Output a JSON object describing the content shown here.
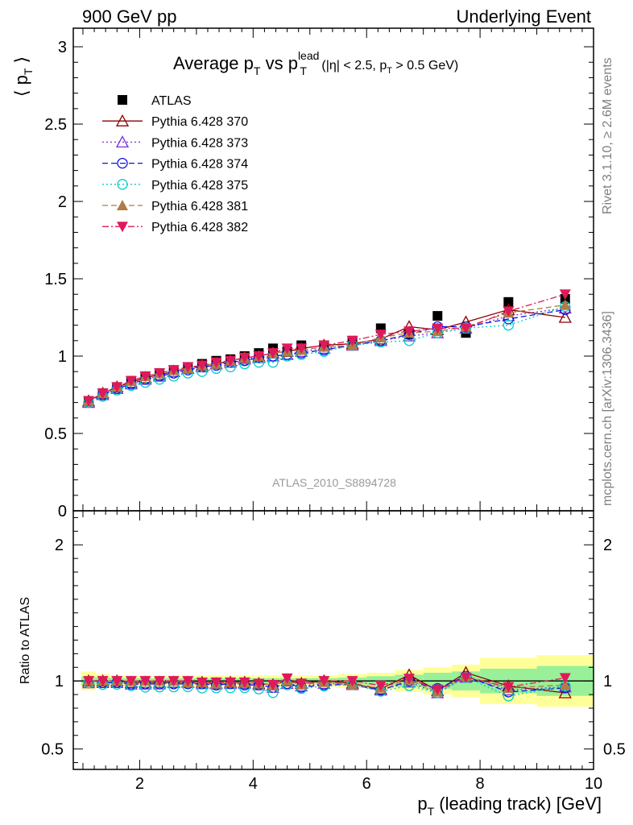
{
  "header": {
    "left": "900 GeV pp",
    "right": "Underlying Event"
  },
  "side_labels": {
    "rivet": "Rivet 3.1.10, ≥ 2.6M events",
    "mcplots": "mcplots.cern.ch [arXiv:1306.3436]"
  },
  "chart_data": [
    {
      "type": "scatter",
      "title": "Average p_T vs p_T^lead (|η| < 2.5, p_T > 0.5 GeV)",
      "title_parts": {
        "main": "Average p",
        "sub1": "T",
        "vs": " vs p",
        "sup": "lead",
        "sub2": "T",
        "cut": " (|η| < 2.5, p",
        "cut_sub": "T",
        "cut_end": " > 0.5 GeV)"
      },
      "ylabel": "⟨ p_T ⟩",
      "ylabel_parts": {
        "open": "⟨ p",
        "sub": "T",
        "close": "⟩"
      },
      "watermark": "ATLAS_2010_S8894728",
      "xlim": [
        0.83,
        10.0
      ],
      "ylim": [
        0,
        3.12
      ],
      "yticks": [
        0,
        0.5,
        1,
        1.5,
        2,
        2.5,
        3
      ],
      "ytick_labels": [
        "0",
        "0.5",
        "1",
        "1.5",
        "2",
        "2.5",
        "3"
      ],
      "log_y": false,
      "grid": false,
      "legend_position": "top-left",
      "x": [
        1.1,
        1.35,
        1.6,
        1.85,
        2.1,
        2.35,
        2.6,
        2.85,
        3.1,
        3.35,
        3.6,
        3.85,
        4.1,
        4.35,
        4.6,
        4.85,
        5.25,
        5.75,
        6.25,
        6.75,
        7.25,
        7.75,
        8.5,
        9.5
      ],
      "series": [
        {
          "name": "ATLAS",
          "color": "#000000",
          "marker": "square-filled",
          "line": "none",
          "values": [
            0.71,
            0.76,
            0.8,
            0.84,
            0.87,
            0.89,
            0.91,
            0.93,
            0.95,
            0.97,
            0.98,
            1.0,
            1.02,
            1.05,
            1.03,
            1.07,
            1.07,
            1.1,
            1.18,
            1.14,
            1.26,
            1.15,
            1.35,
            1.37
          ]
        },
        {
          "name": "Pythia 6.428 370",
          "color": "#8b0000",
          "marker": "triangle-up-open",
          "line": "solid",
          "values": [
            0.71,
            0.76,
            0.8,
            0.83,
            0.86,
            0.88,
            0.9,
            0.92,
            0.94,
            0.95,
            0.97,
            0.99,
            1.0,
            1.02,
            1.03,
            1.05,
            1.07,
            1.08,
            1.11,
            1.19,
            1.17,
            1.22,
            1.3,
            1.25
          ]
        },
        {
          "name": "Pythia 6.428 373",
          "color": "#7b2fd6",
          "marker": "triangle-up-open",
          "line": "dotted",
          "values": [
            0.7,
            0.75,
            0.79,
            0.82,
            0.85,
            0.87,
            0.9,
            0.92,
            0.93,
            0.95,
            0.96,
            0.98,
            0.99,
            1.0,
            1.01,
            1.03,
            1.05,
            1.07,
            1.1,
            1.13,
            1.15,
            1.18,
            1.26,
            1.31
          ]
        },
        {
          "name": "Pythia 6.428 374",
          "color": "#1010e0",
          "marker": "circle-open",
          "line": "dashed",
          "values": [
            0.7,
            0.75,
            0.79,
            0.82,
            0.85,
            0.87,
            0.89,
            0.91,
            0.93,
            0.94,
            0.96,
            0.97,
            0.99,
            1.0,
            1.01,
            1.02,
            1.04,
            1.07,
            1.1,
            1.14,
            1.19,
            1.19,
            1.24,
            1.3
          ]
        },
        {
          "name": "Pythia 6.428 375",
          "color": "#00cccc",
          "marker": "circle-open",
          "line": "dotted",
          "values": [
            0.7,
            0.74,
            0.78,
            0.81,
            0.83,
            0.85,
            0.87,
            0.89,
            0.9,
            0.92,
            0.93,
            0.95,
            0.96,
            0.96,
            1.0,
            1.01,
            1.03,
            1.07,
            1.09,
            1.1,
            1.15,
            1.18,
            1.2,
            1.32
          ]
        },
        {
          "name": "Pythia 6.428 381",
          "color": "#b07c45",
          "marker": "triangle-up-filled",
          "line": "dashed",
          "values": [
            0.71,
            0.76,
            0.8,
            0.84,
            0.87,
            0.89,
            0.91,
            0.92,
            0.94,
            0.95,
            0.97,
            0.99,
            1.0,
            1.02,
            1.03,
            1.04,
            1.06,
            1.07,
            1.12,
            1.15,
            1.16,
            1.19,
            1.28,
            1.33
          ]
        },
        {
          "name": "Pythia 6.428 382",
          "color": "#e0195a",
          "marker": "triangle-down-filled",
          "line": "dashdot",
          "values": [
            0.71,
            0.76,
            0.8,
            0.84,
            0.87,
            0.89,
            0.91,
            0.93,
            0.94,
            0.96,
            0.97,
            0.99,
            1.0,
            1.02,
            1.05,
            1.05,
            1.07,
            1.1,
            1.14,
            1.16,
            1.18,
            1.18,
            1.29,
            1.4
          ]
        }
      ]
    },
    {
      "type": "scatter",
      "title": "",
      "xlabel": "p_T (leading track) [GeV]",
      "xlabel_parts": {
        "main": "p",
        "sub": "T",
        "rest": " (leading track) [GeV]"
      },
      "ylabel": "Ratio to ATLAS",
      "xlim": [
        0.83,
        10.0
      ],
      "ylim": [
        0.35,
        2.25
      ],
      "xticks": [
        2,
        4,
        6,
        8,
        10
      ],
      "xtick_labels": [
        "2",
        "4",
        "6",
        "8",
        "10"
      ],
      "yticks": [
        0.5,
        1,
        2
      ],
      "ytick_labels": [
        "0.5",
        "1",
        "2"
      ],
      "reference_line": 1,
      "band_edges": [
        0.97,
        1.225,
        1.475,
        1.725,
        1.975,
        2.225,
        2.475,
        2.725,
        2.975,
        3.225,
        3.475,
        3.725,
        3.975,
        4.225,
        4.475,
        4.725,
        5.0,
        5.5,
        6.0,
        6.5,
        7.0,
        7.5,
        8.0,
        9.0,
        10.0
      ],
      "stat_band": [
        0.03,
        0.025,
        0.022,
        0.02,
        0.02,
        0.02,
        0.02,
        0.02,
        0.02,
        0.02,
        0.02,
        0.02,
        0.02,
        0.02,
        0.02,
        0.02,
        0.02,
        0.025,
        0.035,
        0.045,
        0.06,
        0.07,
        0.09,
        0.11
      ],
      "total_band": [
        0.07,
        0.05,
        0.04,
        0.04,
        0.04,
        0.04,
        0.04,
        0.04,
        0.04,
        0.04,
        0.04,
        0.04,
        0.04,
        0.04,
        0.04,
        0.04,
        0.04,
        0.05,
        0.06,
        0.08,
        0.1,
        0.12,
        0.17,
        0.19
      ],
      "band_colors": {
        "total": "#ffff99",
        "stat": "#99f099"
      }
    }
  ]
}
